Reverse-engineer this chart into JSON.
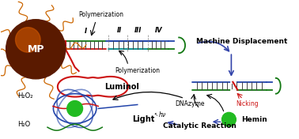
{
  "background_color": "#ffffff",
  "mp_color": "#5a1a00",
  "mp_highlight": "#cc5500",
  "mp_text": "MP",
  "labels": {
    "polymerization1": "Polymerization",
    "polymerization2": "Polymerization",
    "I": "I",
    "II": "II",
    "III": "III",
    "IV": "IV",
    "machine_displacement": "Machine Displacement",
    "nicking": "Nicking",
    "dnazyme": "DNAzyme",
    "hemin": "Hemin",
    "luminol": "Luminol",
    "h2o2": "H₂O₂",
    "h2o": "H₂O",
    "light": "Light",
    "hv": "hν",
    "catalytic": "Catalytic Reaction"
  },
  "colors": {
    "blue_dna": "#2244aa",
    "green_dna": "#117711",
    "red_dna": "#cc1111",
    "orange": "#cc6600",
    "teal": "#008888",
    "purple": "#3344aa",
    "dark": "#111111",
    "green_ball": "#22bb22",
    "rung": "#444444"
  }
}
